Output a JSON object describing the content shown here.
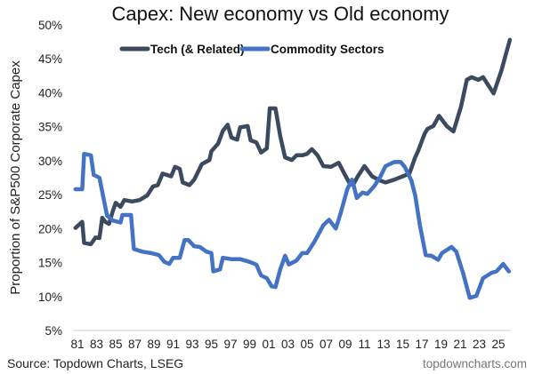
{
  "chart_data": {
    "type": "line",
    "title": "Capex: New economy vs Old economy",
    "xlabel": "",
    "ylabel": "Proportion of S&P500 Corporate Capex",
    "xlim": [
      1980.8,
      2026.2
    ],
    "ylim": [
      5,
      50
    ],
    "yticks": [
      "5%",
      "10%",
      "15%",
      "20%",
      "25%",
      "30%",
      "35%",
      "40%",
      "45%",
      "50%"
    ],
    "ytick_values": [
      5,
      10,
      15,
      20,
      25,
      30,
      35,
      40,
      45,
      50
    ],
    "xticks": [
      "81",
      "83",
      "85",
      "87",
      "89",
      "91",
      "93",
      "95",
      "97",
      "99",
      "01",
      "03",
      "05",
      "07",
      "09",
      "11",
      "13",
      "15",
      "17",
      "19",
      "21",
      "23",
      "25"
    ],
    "xtick_values": [
      1981,
      1983,
      1985,
      1987,
      1989,
      1991,
      1993,
      1995,
      1997,
      1999,
      2001,
      2003,
      2005,
      2007,
      2009,
      2011,
      2013,
      2015,
      2017,
      2019,
      2021,
      2023,
      2025
    ],
    "grid": false,
    "legend_position": "top-center",
    "series": [
      {
        "name": "Tech (& Related)",
        "color": "#3b4a5f",
        "x": [
          1980.8,
          1981.5,
          1981.7,
          1982.4,
          1982.9,
          1983.3,
          1983.6,
          1983.9,
          1984.3,
          1984.7,
          1985.0,
          1985.5,
          1985.9,
          1986.7,
          1987.5,
          1988.3,
          1988.9,
          1989.4,
          1989.9,
          1990.8,
          1991.2,
          1991.7,
          1992.0,
          1992.7,
          1993.2,
          1994.0,
          1994.8,
          1995.0,
          1995.7,
          1996.2,
          1996.7,
          1997.1,
          1997.7,
          1998.0,
          1998.8,
          1999.1,
          1999.7,
          2000.2,
          2000.8,
          2001.1,
          2001.7,
          2002.2,
          2002.7,
          2003.4,
          2003.9,
          2004.5,
          2005.0,
          2005.5,
          2006.1,
          2006.7,
          2007.5,
          2008.3,
          2008.9,
          2009.4,
          2009.8,
          2010.3,
          2011.0,
          2011.8,
          2012.6,
          2013.2,
          2014.1,
          2015.0,
          2015.7,
          2016.3,
          2016.6,
          2017.3,
          2017.6,
          2018.2,
          2018.8,
          2019.6,
          2020.3,
          2021.1,
          2021.7,
          2022.2,
          2022.9,
          2023.4,
          2024.5,
          2025.3,
          2026.2
        ],
        "values": [
          20.1,
          21.0,
          17.9,
          17.7,
          18.7,
          18.6,
          21.6,
          21.0,
          20.7,
          22.6,
          23.8,
          23.2,
          24.2,
          24.0,
          24.2,
          24.9,
          26.2,
          26.4,
          28.1,
          27.7,
          29.1,
          28.8,
          26.8,
          26.4,
          27.2,
          29.5,
          30.1,
          31.4,
          32.5,
          34.4,
          35.3,
          33.4,
          33.1,
          34.9,
          35.1,
          33.0,
          32.7,
          31.2,
          31.8,
          37.7,
          37.7,
          33.6,
          30.5,
          30.1,
          30.8,
          30.8,
          31.0,
          31.7,
          30.8,
          29.2,
          29.1,
          29.7,
          28.1,
          26.8,
          26.4,
          27.7,
          29.2,
          27.7,
          27.1,
          26.8,
          27.2,
          27.7,
          28.1,
          30.5,
          31.4,
          34.0,
          34.7,
          35.1,
          36.6,
          35.1,
          34.3,
          38.0,
          41.9,
          42.3,
          41.9,
          42.3,
          39.9,
          43.2,
          47.8
        ]
      },
      {
        "name": "Commodity Sectors",
        "color": "#4472c4",
        "x": [
          1980.8,
          1981.5,
          1981.7,
          1982.4,
          1982.7,
          1983.3,
          1983.8,
          1984.1,
          1984.7,
          1985.5,
          1985.7,
          1986.4,
          1986.6,
          1986.9,
          1987.8,
          1988.7,
          1989.5,
          1990.1,
          1990.6,
          1991.0,
          1991.7,
          1992.2,
          1992.6,
          1993.2,
          1993.8,
          1994.5,
          1995.0,
          1995.2,
          1995.9,
          1996.2,
          1997.1,
          1998.0,
          1999.0,
          1999.7,
          2000.2,
          2000.8,
          2001.3,
          2001.7,
          2002.2,
          2002.7,
          2003.1,
          2003.9,
          2004.5,
          2005.0,
          2005.7,
          2006.7,
          2007.3,
          2008.0,
          2008.5,
          2009.2,
          2009.7,
          2009.9,
          2010.2,
          2010.8,
          2011.3,
          2012.0,
          2012.6,
          2013.2,
          2014.1,
          2014.8,
          2015.2,
          2015.9,
          2016.3,
          2016.8,
          2017.4,
          2018.0,
          2018.7,
          2019.1,
          2020.1,
          2020.6,
          2021.3,
          2022.0,
          2022.7,
          2023.4,
          2024.3,
          2024.8,
          2025.5,
          2026.1
        ],
        "values": [
          25.8,
          25.8,
          31.0,
          30.8,
          27.9,
          27.5,
          24.0,
          21.9,
          21.2,
          20.9,
          22.0,
          22.0,
          22.0,
          17.0,
          16.6,
          16.4,
          16.1,
          15.1,
          14.8,
          15.7,
          15.7,
          18.3,
          18.3,
          17.4,
          17.3,
          16.6,
          16.4,
          13.7,
          14.0,
          15.7,
          15.5,
          15.5,
          15.1,
          14.7,
          13.1,
          12.7,
          11.5,
          11.4,
          14.0,
          16.0,
          14.7,
          15.3,
          16.4,
          16.4,
          17.9,
          20.5,
          21.3,
          20.0,
          22.2,
          25.8,
          27.2,
          26.2,
          24.5,
          25.3,
          25.1,
          26.2,
          27.5,
          29.2,
          29.8,
          29.8,
          29.1,
          27.1,
          24.9,
          20.5,
          16.1,
          16.0,
          15.4,
          16.4,
          17.3,
          16.6,
          13.5,
          9.8,
          10.1,
          12.7,
          13.5,
          13.7,
          14.8,
          13.7
        ]
      }
    ],
    "source": "Source: Topdown Charts, LSEG",
    "watermark": "topdowncharts.com"
  }
}
